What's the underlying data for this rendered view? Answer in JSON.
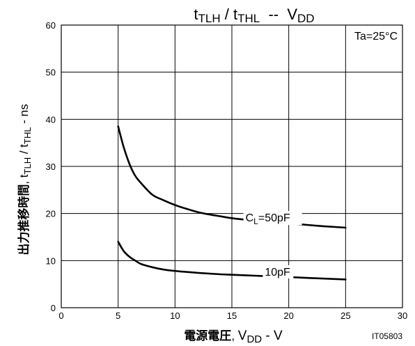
{
  "chart_data": {
    "type": "line",
    "title": {
      "part1": "t",
      "part1_sub": "TLH",
      "sep": " / ",
      "part2": "t",
      "part2_sub": "THL",
      "dash": "  --  ",
      "part3": "V",
      "part3_sub": "DD"
    },
    "xlabel": {
      "cjk": "電源電圧",
      "comma": ", ",
      "v": "V",
      "v_sub": "DD",
      "unit": " - V"
    },
    "ylabel": {
      "cjk": "出力推移時間",
      "comma": ", ",
      "t1": "t",
      "t1_sub": "TLH",
      "sep": " / ",
      "t2": "t",
      "t2_sub": "THL",
      "unit": " - ns"
    },
    "xlim": [
      0,
      30
    ],
    "ylim": [
      0,
      60
    ],
    "xticks": [
      0,
      5,
      10,
      15,
      20,
      25,
      30
    ],
    "yticks": [
      0,
      10,
      20,
      30,
      40,
      50,
      60
    ],
    "grid": true,
    "series": [
      {
        "name_main": "C",
        "name_sub": "L",
        "name_rest": "=50pF",
        "x": [
          5,
          5.5,
          6,
          6.5,
          7,
          8,
          9,
          10,
          11,
          12,
          13,
          14,
          15,
          17,
          19,
          21,
          23,
          25
        ],
        "y": [
          38.5,
          34,
          30.5,
          28,
          26.5,
          24,
          22.8,
          21.8,
          21,
          20.3,
          19.8,
          19.4,
          19,
          18.5,
          18.1,
          17.7,
          17.3,
          17
        ]
      },
      {
        "name": "10pF",
        "x": [
          5,
          5.5,
          6,
          6.5,
          7,
          8,
          9,
          10,
          12,
          14,
          16,
          18,
          20,
          22,
          25
        ],
        "y": [
          14,
          12,
          10.8,
          10,
          9.3,
          8.6,
          8.1,
          7.8,
          7.4,
          7.1,
          6.9,
          6.7,
          6.5,
          6.3,
          6
        ]
      }
    ],
    "annotations": {
      "condition": "Ta=25°C",
      "code": "IT05803"
    }
  }
}
